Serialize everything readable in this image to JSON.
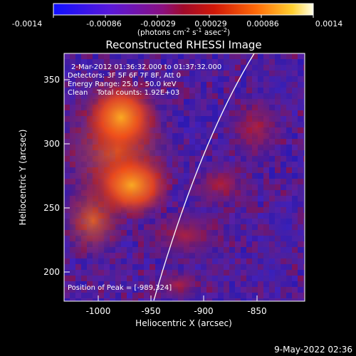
{
  "colorbar": {
    "ticks": [
      "-0.0014",
      "-0.00086",
      "-0.00029",
      "0.00029",
      "0.00086",
      "0.0014"
    ],
    "units_prefix": "(photons cm",
    "units_exp1": "-2",
    "units_mid": " s",
    "units_exp2": "-1",
    "units_mid2": " asec",
    "units_exp3": "-2",
    "units_suffix": ")"
  },
  "title": "Reconstructed RHESSI Image",
  "info": {
    "line1": "2-Mar-2012 01:36:32.000 to 01:37:32.000",
    "line2": "Detectors: 3F 5F 6F 7F 8F, Att 0",
    "line3": "Energy Range: 25.0 - 50.0 keV",
    "line4": "Clean    Total counts: 1.92E+03"
  },
  "peak_label": "Position of Peak = [-989,324]",
  "x_axis": {
    "label": "Heliocentric X (arcsec)",
    "ticks": [
      "-1000",
      "-950",
      "-900",
      "-850"
    ]
  },
  "y_axis": {
    "label": "Heliocentric Y (arcsec)",
    "ticks": [
      "350",
      "300",
      "250",
      "200"
    ]
  },
  "timestamp": "9-May-2022 02:36"
}
